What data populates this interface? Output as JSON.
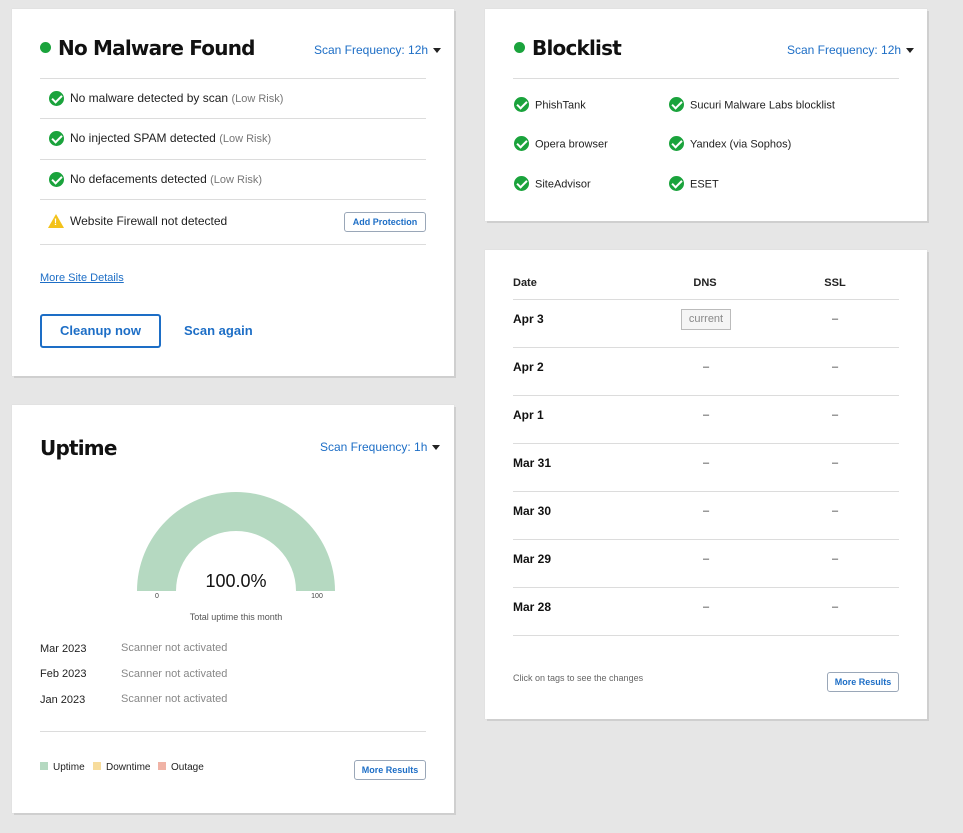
{
  "malware": {
    "title": "No Malware Found",
    "status_color": "#1aa33c",
    "frequency": "Scan Frequency: 12h",
    "rows": [
      {
        "text": "No malware detected by scan",
        "risk": "(Low Risk)",
        "icon": "check-circle-icon"
      },
      {
        "text": "No injected SPAM detected",
        "risk": "(Low Risk)",
        "icon": "check-circle-icon"
      },
      {
        "text": "No defacements detected",
        "risk": "(Low Risk)",
        "icon": "check-circle-icon"
      }
    ],
    "firewall": {
      "text": "Website Firewall not detected",
      "icon": "warning-icon",
      "button": "Add Protection"
    },
    "more_link": "More Site Details",
    "cleanup_button": "Cleanup now",
    "scan_again": "Scan again"
  },
  "blocklist": {
    "title": "Blocklist",
    "frequency": "Scan Frequency: 12h",
    "items_left": [
      "PhishTank",
      "Opera browser",
      "SiteAdvisor"
    ],
    "items_right": [
      "Sucuri Malware Labs blocklist",
      "Yandex (via Sophos)",
      "ESET"
    ]
  },
  "uptime": {
    "title": "Uptime",
    "frequency": "Scan Frequency: 1h",
    "gauge": {
      "value": "100.0%",
      "fraction": 1.0,
      "min": "0",
      "max": "100",
      "caption": "Total uptime this month",
      "color": "#b5d9c1"
    },
    "history": [
      {
        "month": "Mar 2023",
        "status": "Scanner not activated"
      },
      {
        "month": "Feb 2023",
        "status": "Scanner not activated"
      },
      {
        "month": "Jan 2023",
        "status": "Scanner not activated"
      }
    ],
    "legend": [
      {
        "label": "Uptime",
        "color": "#b5d9c1"
      },
      {
        "label": "Downtime",
        "color": "#f7dc9c"
      },
      {
        "label": "Outage",
        "color": "#f0b3a6"
      }
    ],
    "more_button": "More Results"
  },
  "changes": {
    "columns": [
      "Date",
      "DNS",
      "SSL"
    ],
    "rows": [
      {
        "date": "Apr 3",
        "dns": "current",
        "ssl": "–"
      },
      {
        "date": "Apr 2",
        "dns": "–",
        "ssl": "–"
      },
      {
        "date": "Apr 1",
        "dns": "–",
        "ssl": "–"
      },
      {
        "date": "Mar 31",
        "dns": "–",
        "ssl": "–"
      },
      {
        "date": "Mar 30",
        "dns": "–",
        "ssl": "–"
      },
      {
        "date": "Mar 29",
        "dns": "–",
        "ssl": "–"
      },
      {
        "date": "Mar 28",
        "dns": "–",
        "ssl": "–"
      }
    ],
    "hint": "Click on tags to see the changes",
    "more_button": "More Results"
  }
}
